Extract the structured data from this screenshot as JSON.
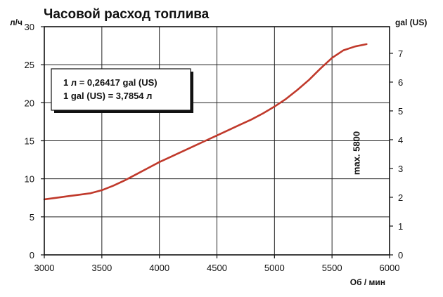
{
  "chart_data": {
    "type": "line",
    "title": "Часовой расход топлива",
    "xlabel": "Об / мин",
    "ylabel": "л/ч",
    "y2label": "gal (US)",
    "xlim": [
      3000,
      6000
    ],
    "ylim": [
      0,
      30
    ],
    "y2lim": [
      0,
      7.925
    ],
    "x_ticks": [
      "3000",
      "3500",
      "4000",
      "4500",
      "5000",
      "5500",
      "6000"
    ],
    "y_ticks": [
      "0",
      "5",
      "10",
      "15",
      "20",
      "25",
      "30"
    ],
    "y2_ticks": [
      "0",
      "1",
      "2",
      "3",
      "4",
      "5",
      "6",
      "7"
    ],
    "grid": true,
    "line_color": "#c0392b",
    "series": [
      {
        "x": [
          3000,
          3100,
          3200,
          3300,
          3400,
          3500,
          3600,
          3700,
          3800,
          3900,
          4000,
          4100,
          4200,
          4300,
          4400,
          4500,
          4600,
          4700,
          4800,
          4900,
          5000,
          5100,
          5200,
          5300,
          5400,
          5500,
          5600,
          5700,
          5800
        ],
        "y": [
          7.3,
          7.5,
          7.7,
          7.9,
          8.1,
          8.5,
          9.1,
          9.8,
          10.6,
          11.4,
          12.2,
          12.9,
          13.6,
          14.3,
          15.0,
          15.7,
          16.4,
          17.1,
          17.8,
          18.6,
          19.5,
          20.5,
          21.7,
          23.0,
          24.5,
          25.9,
          26.9,
          27.4,
          27.7
        ]
      }
    ],
    "annotations": {
      "conversion_line1": "1 л = 0,26417 gal (US)",
      "conversion_line2": "1 gal (US) = 3,7854 л",
      "max_label": "max. 5800",
      "max_x": 5800
    }
  }
}
